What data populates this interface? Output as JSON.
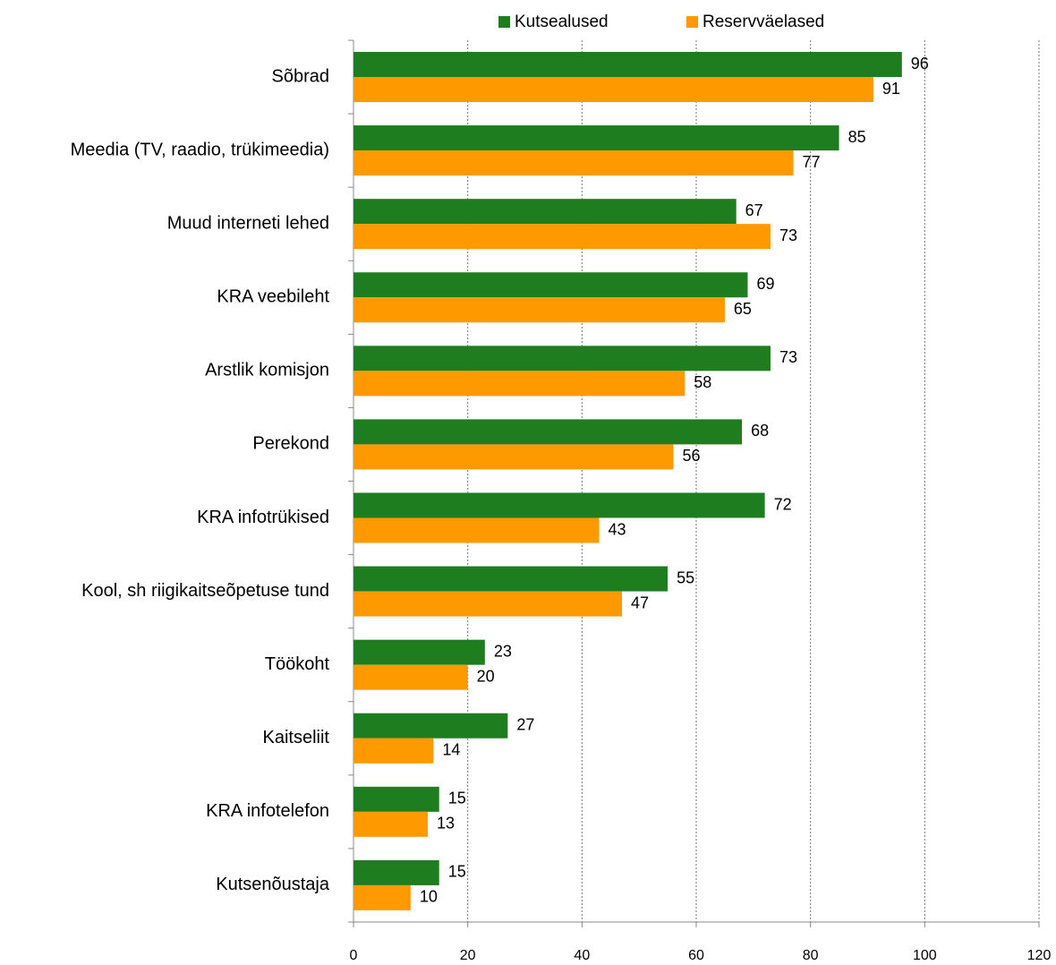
{
  "chart_data": {
    "type": "barh",
    "categories": [
      "Sõbrad",
      "Meedia (TV, raadio, trükimeedia)",
      "Muud interneti lehed",
      "KRA veebileht",
      "Arstlik komisjon",
      "Perekond",
      "KRA infotrükised",
      "Kool, sh riigikaitseõpetuse tund",
      "Töökoht",
      "Kaitseliit",
      "KRA infotelefon",
      "Kutsenõustaja"
    ],
    "series": [
      {
        "name": "Kutsealused",
        "color": "#1e7d1e",
        "values": [
          96,
          85,
          67,
          69,
          73,
          68,
          72,
          55,
          23,
          27,
          15,
          15
        ]
      },
      {
        "name": "Reservväelased",
        "color": "#ff9900",
        "values": [
          91,
          77,
          73,
          65,
          58,
          56,
          43,
          47,
          20,
          14,
          13,
          10
        ]
      }
    ],
    "xlim": [
      0,
      120
    ],
    "xticks": [
      0,
      20,
      40,
      60,
      80,
      100,
      120
    ],
    "grid": true,
    "legend": "top"
  }
}
